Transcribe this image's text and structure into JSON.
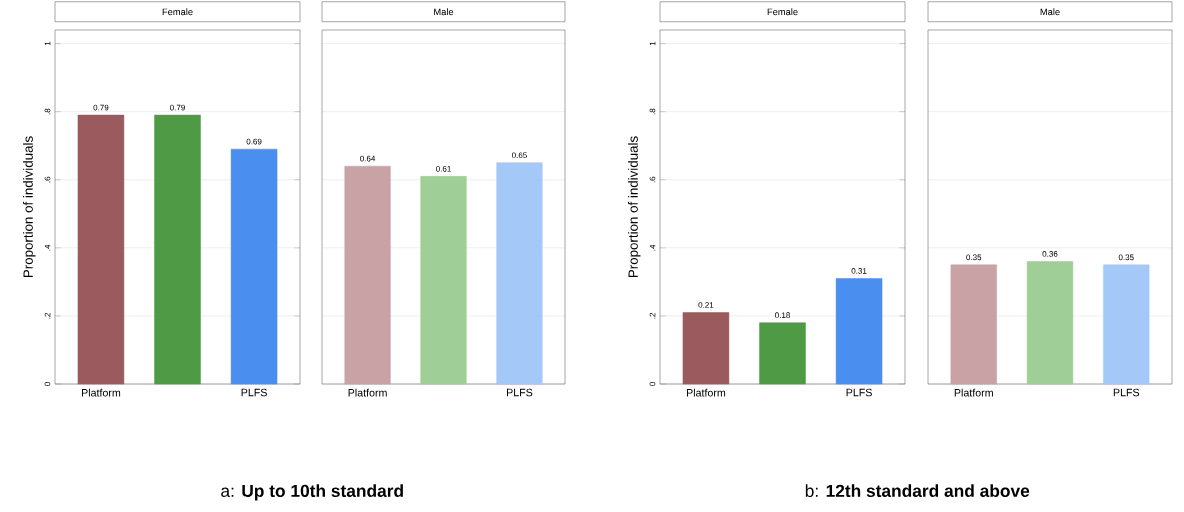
{
  "chart_data": [
    {
      "type": "bar",
      "title": "Female",
      "ylabel": "Proportion of individuals",
      "categories": [
        "Platform",
        null,
        "PLFS"
      ],
      "values": [
        0.79,
        0.79,
        0.69
      ],
      "colors": [
        "#9b5a5e",
        "#4f9a44",
        "#4a8ff0"
      ],
      "ylim": [
        0,
        1.04
      ],
      "yticks": [
        {
          "value": 0,
          "label": "0"
        },
        {
          "value": 0.2,
          "label": ".2"
        },
        {
          "value": 0.4,
          "label": ".4"
        },
        {
          "value": 0.6,
          "label": ".6"
        },
        {
          "value": 0.8,
          "label": ".8"
        },
        1
      ],
      "grid": "y",
      "data_labels": true,
      "annotations": [
        "a: **Up to 10th standard**"
      ]
    },
    {
      "type": "bar",
      "title": "Male",
      "categories": [
        "Platform",
        null,
        "PLFS"
      ],
      "values": [
        0.64,
        0.61,
        0.65
      ],
      "colors": [
        "#c9a2a6",
        "#9fce96",
        "#a4c8f7"
      ],
      "ylim": [
        0,
        1.04
      ],
      "grid": "y",
      "data_labels": true,
      "tick_labels": "x"
    },
    {
      "type": "bar",
      "title": "Female",
      "ylabel": "Proportion of individuals",
      "categories": [
        "Platform",
        null,
        "PLFS"
      ],
      "values": [
        0.21,
        0.18,
        0.31
      ],
      "colors": [
        "#9b5a5e",
        "#4f9a44",
        "#4a8ff0"
      ],
      "ylim": [
        0,
        1.04
      ],
      "yticks": [
        {
          "value": 0,
          "label": "0"
        },
        {
          "value": 0.2,
          "label": ".2"
        },
        {
          "value": 0.4,
          "label": ".4"
        },
        {
          "value": 0.6,
          "label": ".6"
        },
        {
          "value": 0.8,
          "label": ".8"
        },
        1
      ],
      "grid": "y",
      "data_labels": true,
      "annotations": [
        "b: **12th standard and above**"
      ]
    },
    {
      "type": "bar",
      "title": "Male",
      "categories": [
        "Platform",
        null,
        "PLFS"
      ],
      "values": [
        0.35,
        0.36,
        0.35
      ],
      "colors": [
        "#c9a2a6",
        "#9fce96",
        "#a4c8f7"
      ],
      "ylim": [
        0,
        1.04
      ],
      "grid": "y",
      "data_labels": true,
      "tick_labels": "x"
    }
  ]
}
